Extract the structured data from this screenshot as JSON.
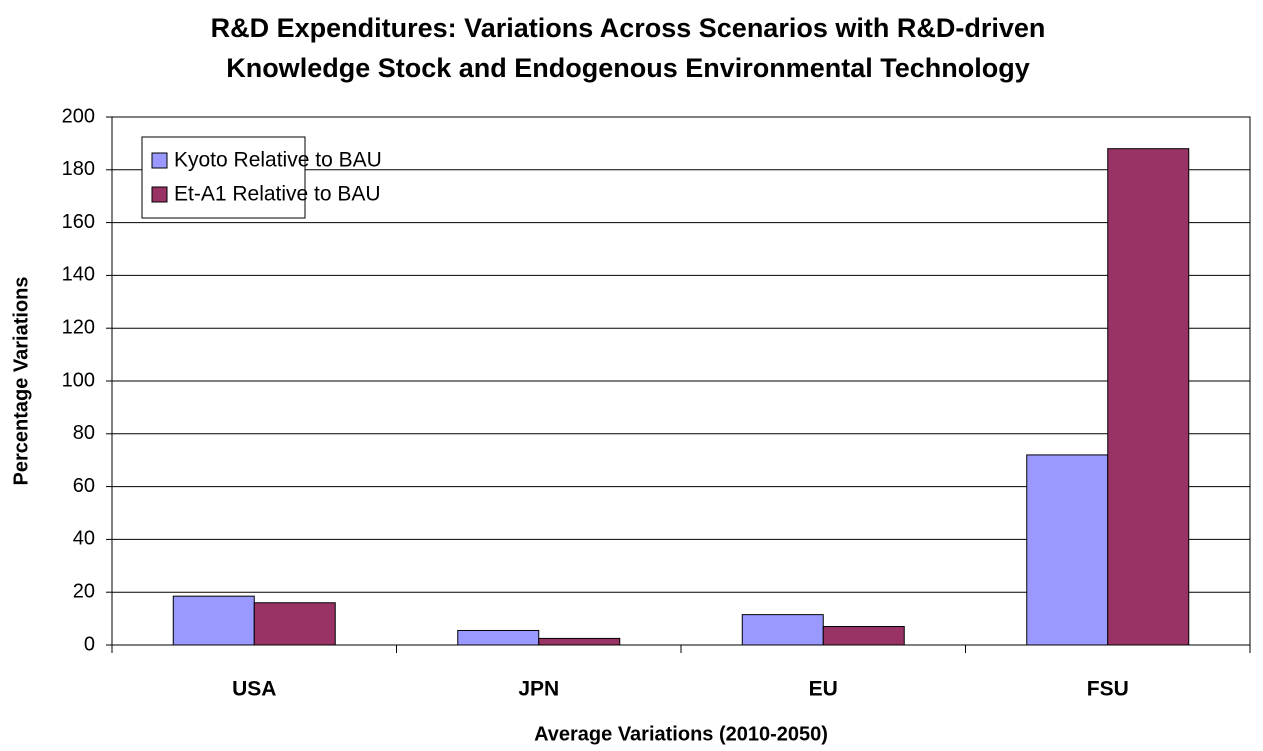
{
  "chart_data": {
    "type": "bar",
    "title": [
      "R&D Expenditures: Variations Across Scenarios with R&D-driven",
      "Knowledge Stock and Endogenous Environmental Technology"
    ],
    "x_label": "Average Variations (2010-2050)",
    "y_label": "Percentage Variations",
    "categories": [
      "USA",
      "JPN",
      "EU",
      "FSU"
    ],
    "series": [
      {
        "name": "Kyoto Relative to BAU",
        "color": "#9999ff",
        "values": [
          18.5,
          5.5,
          11.5,
          72
        ]
      },
      {
        "name": "Et-A1 Relative to BAU",
        "color": "#993366",
        "values": [
          16,
          2.5,
          7,
          188
        ]
      }
    ],
    "ylim": [
      0,
      200
    ],
    "yticks": [
      0,
      20,
      40,
      60,
      80,
      100,
      120,
      140,
      160,
      180,
      200
    ],
    "grid": true,
    "legend": "upper left"
  }
}
